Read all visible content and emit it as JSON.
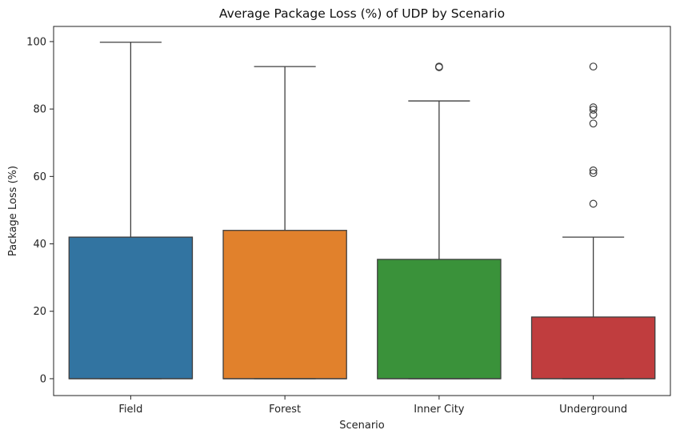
{
  "chart_data": {
    "type": "box",
    "title": "Average Package Loss (%) of UDP by Scenario",
    "xlabel": "Scenario",
    "ylabel": "Package Loss (%)",
    "ylim": [
      -5,
      104.5
    ],
    "yticks": [
      "0",
      "20",
      "40",
      "60",
      "80",
      "100"
    ],
    "grid": false,
    "legend": "none",
    "categories": [
      "Field",
      "Forest",
      "Inner City",
      "Underground"
    ],
    "colors": [
      "#3274a1",
      "#e1812c",
      "#3a923a",
      "#c03d3e"
    ],
    "boxes": [
      {
        "category": "Field",
        "whisker_low": 0,
        "q1": 0,
        "median": 0,
        "q3": 42,
        "whisker_high": 99.8,
        "outliers": []
      },
      {
        "category": "Forest",
        "whisker_low": 0,
        "q1": 0,
        "median": 0,
        "q3": 44,
        "whisker_high": 92.6,
        "outliers": []
      },
      {
        "category": "Inner City",
        "whisker_low": 0,
        "q1": 0,
        "median": 0,
        "q3": 35.4,
        "whisker_high": 82.4,
        "outliers": [
          92.4,
          92.6
        ]
      },
      {
        "category": "Underground",
        "whisker_low": 0,
        "q1": 0,
        "median": 0,
        "q3": 18.3,
        "whisker_high": 42,
        "outliers": [
          92.6,
          80.5,
          79.8,
          78.3,
          75.7,
          61.8,
          61,
          51.9
        ]
      }
    ]
  }
}
